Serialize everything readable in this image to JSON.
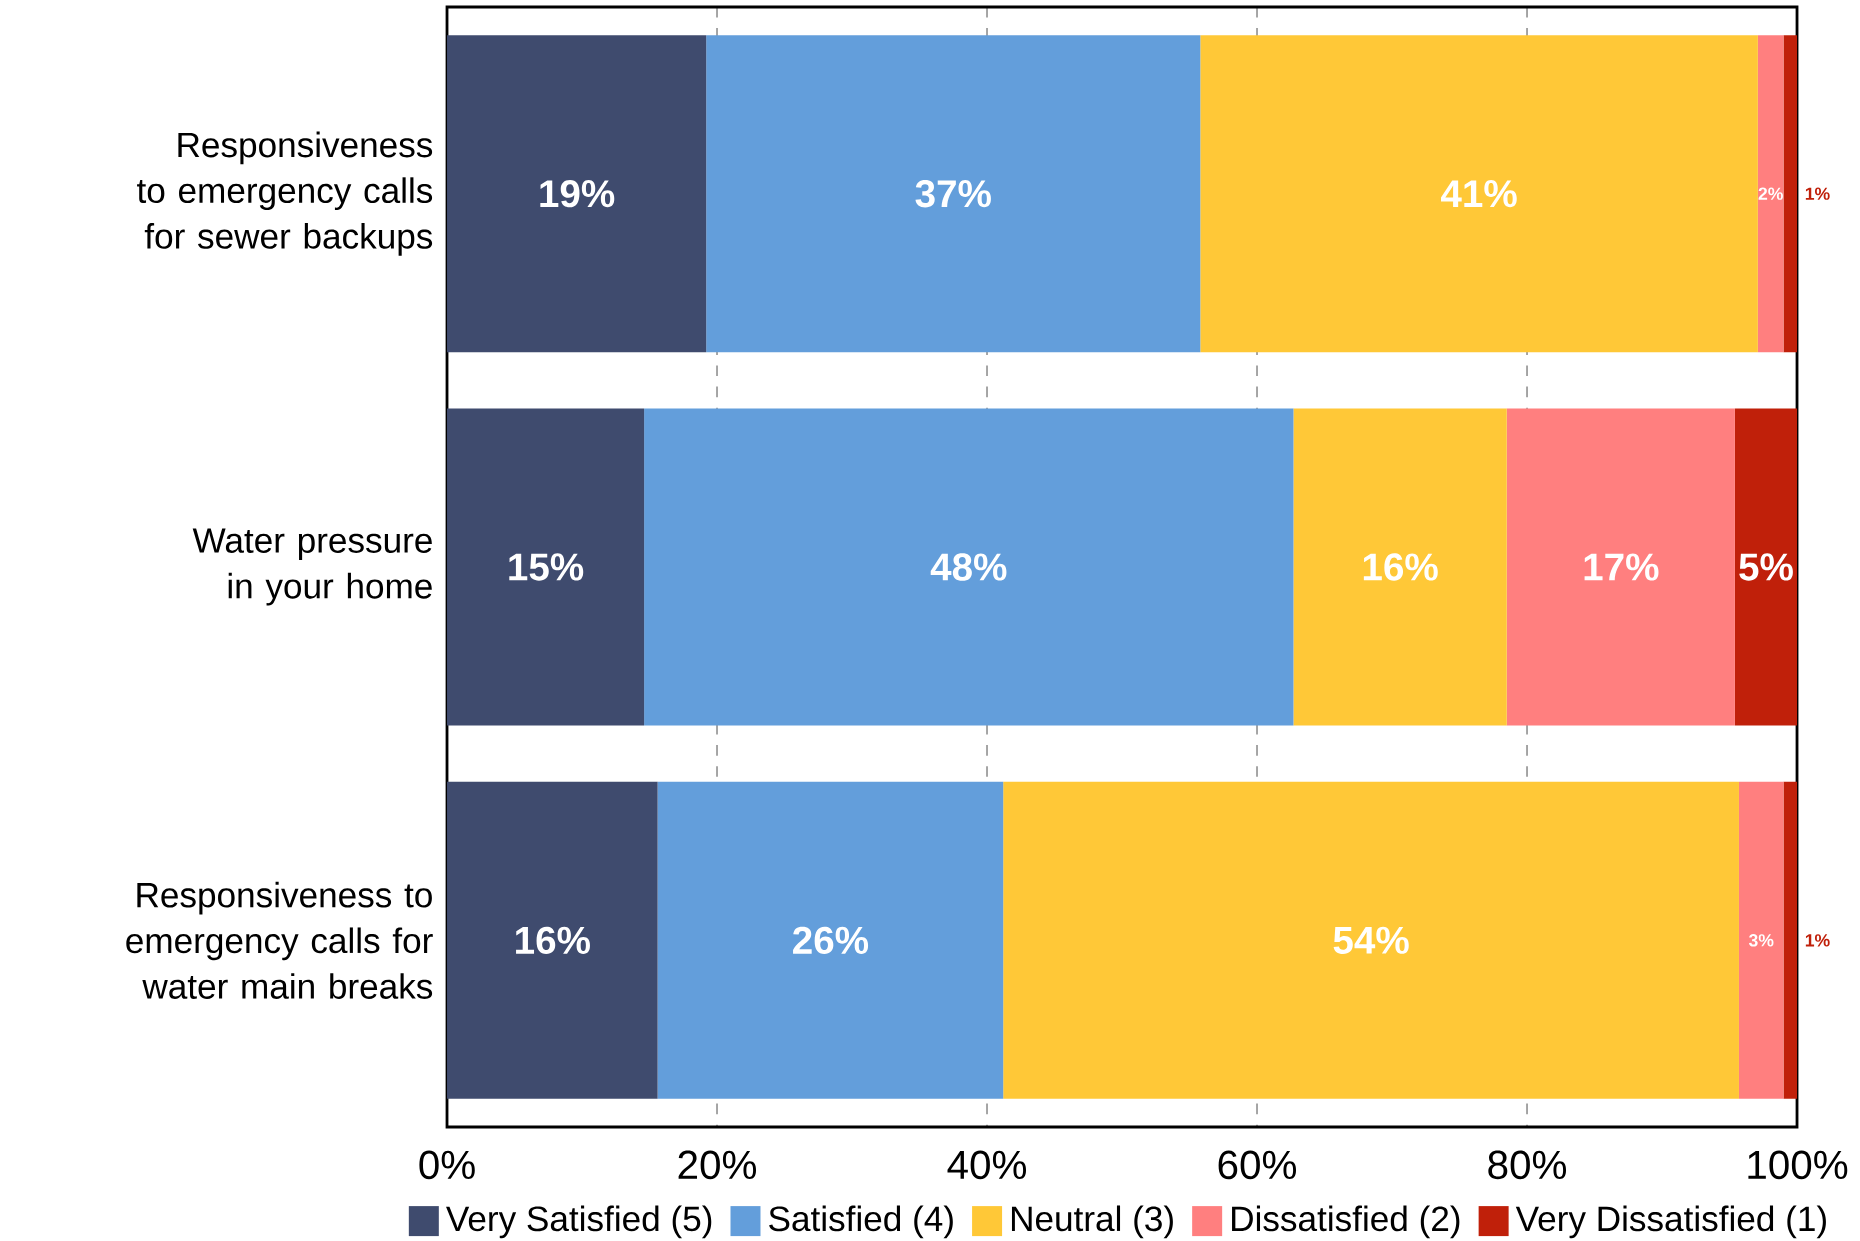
{
  "chart_data": {
    "type": "bar",
    "orientation": "horizontal",
    "stacked": true,
    "categories": [
      "Responsiveness to emergency calls for sewer backups",
      "Water pressure in your home",
      "Responsiveness to emergency calls for water main breaks"
    ],
    "series": [
      {
        "name": "Very Satisfied (5)",
        "color": "#3f4b6e",
        "values": [
          19.2,
          14.6,
          15.6
        ],
        "value_labels": [
          "19%",
          "15%",
          "16%"
        ]
      },
      {
        "name": "Satisfied (4)",
        "color": "#639edb",
        "values": [
          36.6,
          48.1,
          25.6
        ],
        "value_labels": [
          "37%",
          "48%",
          "26%"
        ]
      },
      {
        "name": "Neutral (3)",
        "color": "#ffc837",
        "values": [
          41.3,
          15.8,
          54.5
        ],
        "value_labels": [
          "41%",
          "16%",
          "54%"
        ]
      },
      {
        "name": "Dissatisfied (2)",
        "color": "#ff7f7f",
        "values": [
          1.9,
          16.9,
          3.3
        ],
        "value_labels": [
          "2%",
          "17%",
          "3%"
        ]
      },
      {
        "name": "Very Dissatisfied (1)",
        "color": "#c0200a",
        "values": [
          1.0,
          4.6,
          1.0
        ],
        "value_labels": [
          "1%",
          "5%",
          "1%"
        ]
      }
    ],
    "xlim": [
      0,
      100
    ],
    "xticks": [
      {
        "value": 0,
        "label": "0%"
      },
      {
        "value": 20,
        "label": "20%"
      },
      {
        "value": 40,
        "label": "40%"
      },
      {
        "value": 60,
        "label": "60%"
      },
      {
        "value": 80,
        "label": "80%"
      },
      {
        "value": 100,
        "label": "100%"
      }
    ],
    "grid": "x",
    "legend": "bottom"
  }
}
